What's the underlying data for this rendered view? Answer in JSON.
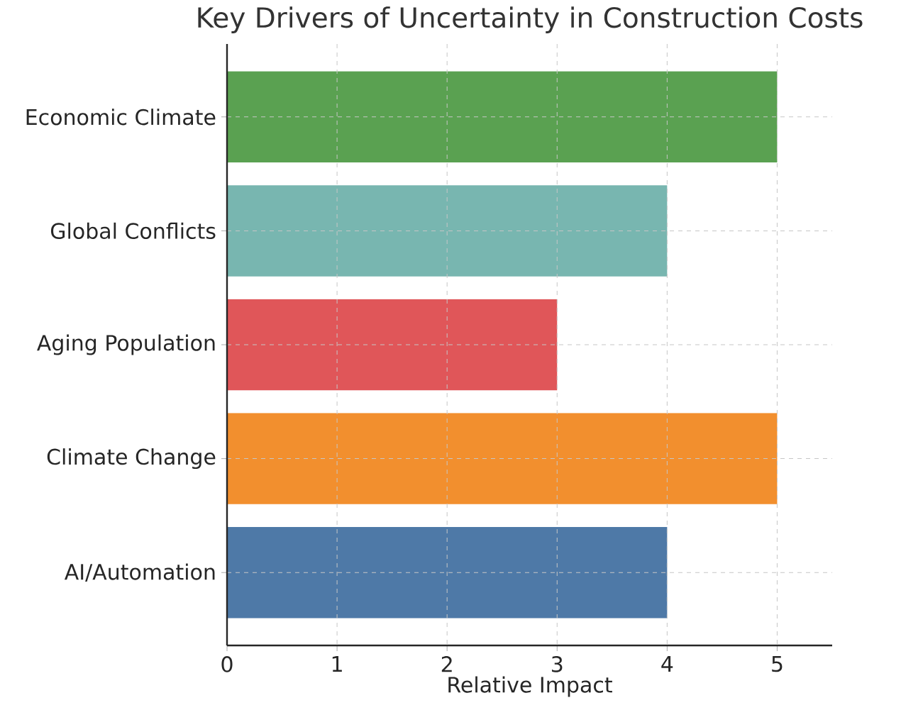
{
  "chart_data": {
    "type": "bar",
    "orientation": "horizontal",
    "title": "Key Drivers of Uncertainty in Construction Costs",
    "xlabel": "Relative Impact",
    "categories": [
      "Economic Climate",
      "Global Conflicts",
      "Aging Population",
      "Climate Change",
      "AI/Automation"
    ],
    "values": [
      5,
      4,
      3,
      5,
      4
    ],
    "colors": [
      "#5aa151",
      "#78b6b0",
      "#e05659",
      "#f28f2e",
      "#4e79a7"
    ],
    "xlim": [
      0,
      5.5
    ],
    "xticks": [
      0,
      1,
      2,
      3,
      4,
      5
    ],
    "grid": true
  }
}
